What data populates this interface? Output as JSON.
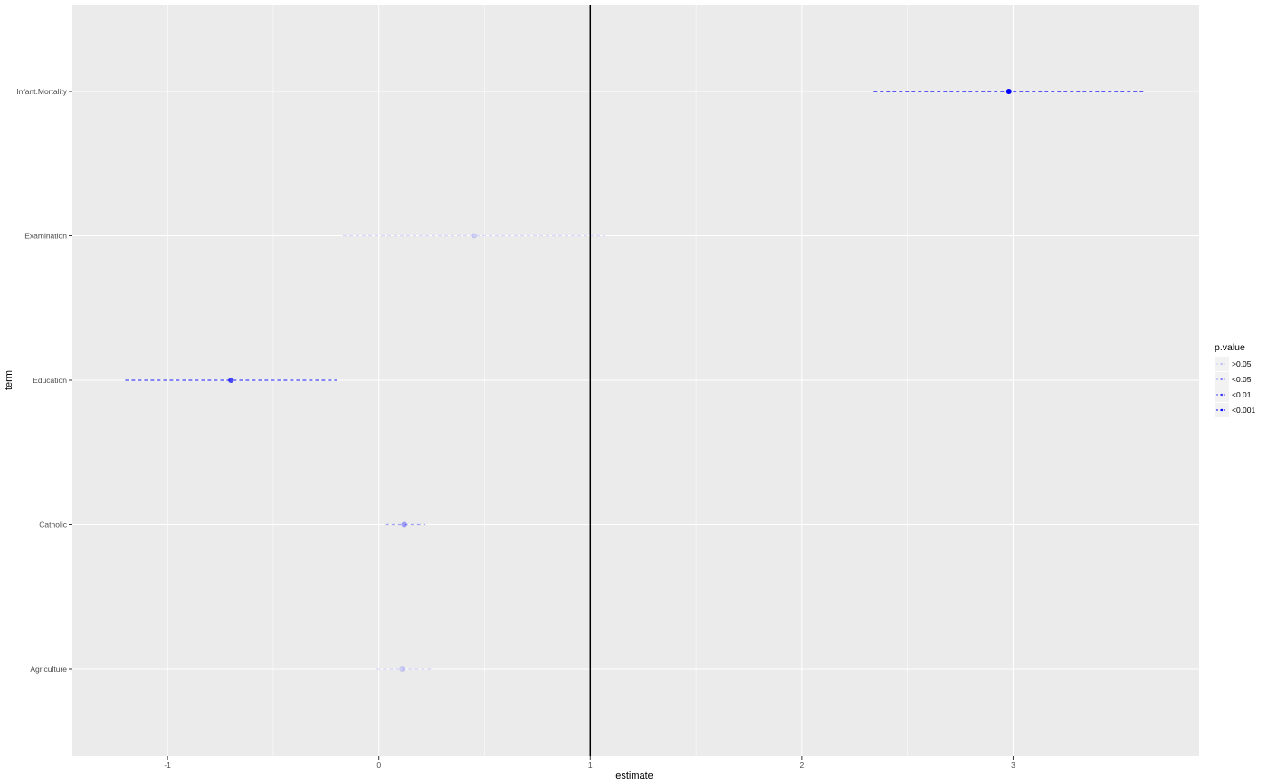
{
  "chart_data": {
    "type": "scatter",
    "subtype": "coefficient-plot",
    "xlabel": "estimate",
    "ylabel": "term",
    "xlim": [
      -1.45,
      3.88
    ],
    "x_ticks": [
      -1,
      0,
      1,
      2,
      3
    ],
    "x_tick_labels": [
      "-1",
      "0",
      "1",
      "2",
      "3"
    ],
    "reference_line_x": 1,
    "grid": true,
    "categories": [
      "Infant.Mortality",
      "Examination",
      "Education",
      "Catholic",
      "Agriculture"
    ],
    "points": [
      {
        "term": "Infant.Mortality",
        "estimate": 2.98,
        "conf_low": 2.34,
        "conf_high": 3.62,
        "p_group": "<0.001"
      },
      {
        "term": "Examination",
        "estimate": 0.45,
        "conf_low": -0.17,
        "conf_high": 1.07,
        "p_group": ">0.05"
      },
      {
        "term": "Education",
        "estimate": -0.7,
        "conf_low": -1.2,
        "conf_high": -0.2,
        "p_group": "<0.01"
      },
      {
        "term": "Catholic",
        "estimate": 0.12,
        "conf_low": 0.03,
        "conf_high": 0.22,
        "p_group": "<0.05"
      },
      {
        "term": "Agriculture",
        "estimate": 0.11,
        "conf_low": -0.01,
        "conf_high": 0.26,
        "p_group": ">0.05"
      }
    ],
    "legend": {
      "title": "p.value",
      "placement": "right",
      "items": [
        {
          "label": ">0.05",
          "alpha": 0.15
        },
        {
          "label": "<0.05",
          "alpha": 0.35
        },
        {
          "label": "<0.01",
          "alpha": 0.7
        },
        {
          "label": "<0.001",
          "alpha": 1
        }
      ]
    },
    "colors": {
      "panel": "#ebebeb",
      "grid": "#ffffff",
      "series": "#0000ff",
      "reference_line": "#000000"
    }
  }
}
